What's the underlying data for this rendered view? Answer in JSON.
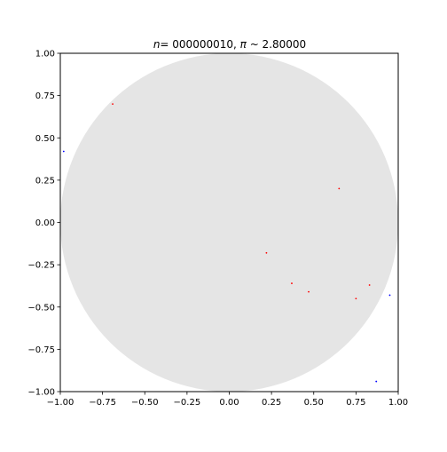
{
  "chart_data": {
    "type": "scatter",
    "title": "n = 000000010, π ~ 2.80000",
    "title_parts": {
      "n_symbol": "n",
      "n_value": "= 000000010, ",
      "pi_symbol": "π",
      "pi_value": " ~ 2.80000"
    },
    "xlabel": "",
    "ylabel": "",
    "xlim": [
      -1.0,
      1.0
    ],
    "ylim": [
      -1.0,
      1.0
    ],
    "grid": false,
    "background_shape": "unit-circle",
    "xticks": [
      "−1.00",
      "−0.75",
      "−0.50",
      "−0.25",
      "0.00",
      "0.25",
      "0.50",
      "0.75",
      "1.00"
    ],
    "yticks": [
      "−1.00",
      "−0.75",
      "−0.50",
      "−0.25",
      "0.00",
      "0.25",
      "0.50",
      "0.75",
      "1.00"
    ],
    "series": [
      {
        "points_inside": [
          [
            -0.69,
            0.7
          ],
          [
            0.65,
            0.2
          ],
          [
            0.22,
            -0.18
          ],
          [
            0.37,
            -0.36
          ],
          [
            0.47,
            -0.41
          ],
          [
            0.75,
            -0.45
          ],
          [
            0.83,
            -0.37
          ]
        ]
      },
      {
        "points_outside": [
          [
            -0.98,
            0.42
          ],
          [
            0.95,
            -0.43
          ],
          [
            0.87,
            -0.94
          ]
        ]
      }
    ]
  },
  "colors": {
    "inside": "#ff0000",
    "outside": "#0000ff",
    "circle": "#e5e5e5",
    "axes": "#000000"
  }
}
